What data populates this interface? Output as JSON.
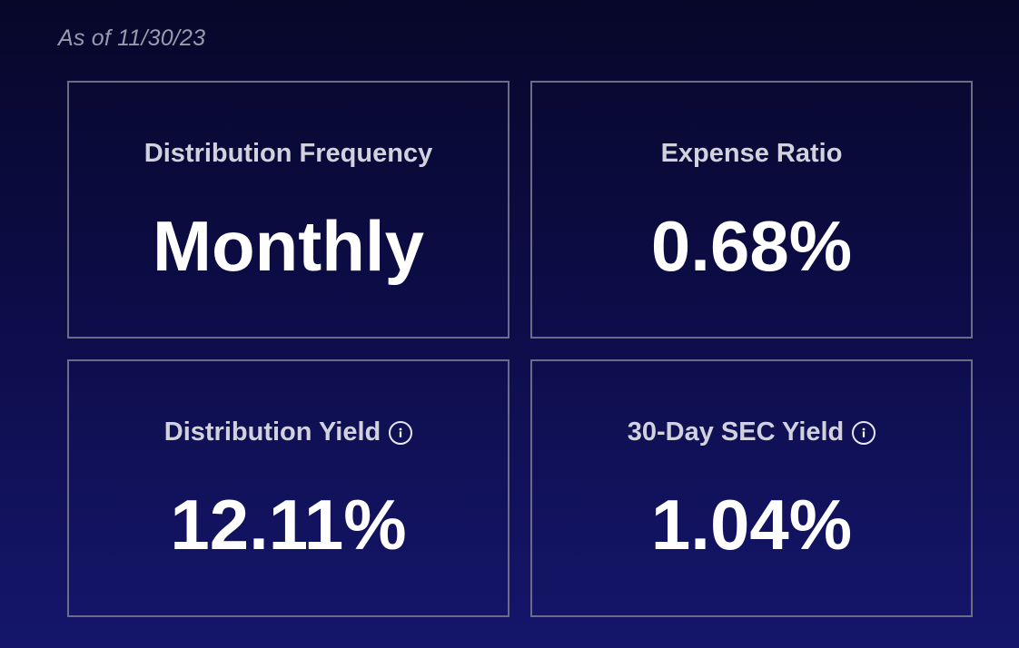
{
  "as_of": "As of 11/30/23",
  "cards": [
    {
      "label": "Distribution Frequency",
      "value": "Monthly",
      "has_info_icon": false
    },
    {
      "label": "Expense Ratio",
      "value": "0.68%",
      "has_info_icon": false
    },
    {
      "label": "Distribution Yield",
      "value": "12.11%",
      "has_info_icon": true,
      "icon": "info-circle-icon"
    },
    {
      "label": "30-Day SEC Yield",
      "value": "1.04%",
      "has_info_icon": true,
      "icon": "info-circle-icon"
    }
  ],
  "colors": {
    "background_top": "#07072a",
    "background_bottom": "#15166b",
    "card_border": "#6b6c86",
    "label_text": "#d2d2de",
    "value_text": "#ffffff",
    "as_of_text": "#9a9aad"
  }
}
